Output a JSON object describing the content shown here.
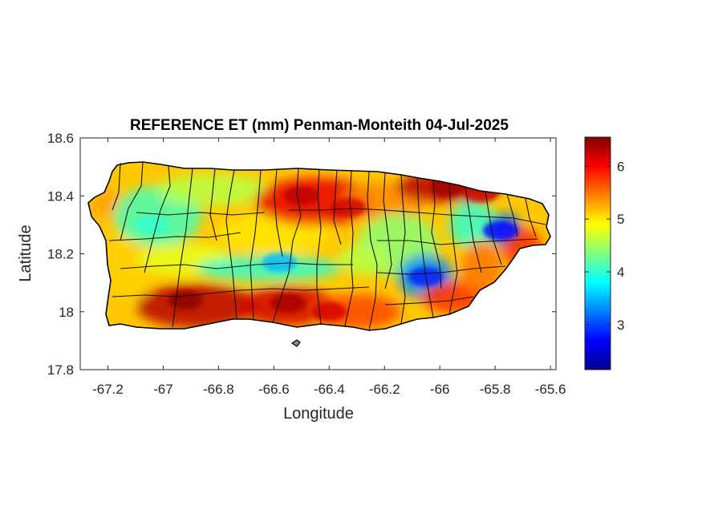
{
  "chart_data": {
    "type": "heatmap",
    "title": "REFERENCE ET (mm) Penman-Monteith 04-Jul-2025",
    "xlabel": "Longitude",
    "ylabel": "Latitude",
    "xlim": [
      -67.3,
      -65.58
    ],
    "ylim": [
      17.8,
      18.6
    ],
    "xticks": [
      -67.2,
      -67,
      -66.8,
      -66.6,
      -66.4,
      -66.2,
      -66,
      -65.8,
      -65.6
    ],
    "xtick_labels": [
      "-67.2",
      "-67",
      "-66.8",
      "-66.6",
      "-66.4",
      "-66.2",
      "-66",
      "-65.8",
      "-65.6"
    ],
    "yticks": [
      17.8,
      18,
      18.2,
      18.4,
      18.6
    ],
    "ytick_labels": [
      "17.8",
      "18",
      "18.2",
      "18.4",
      "18.6"
    ],
    "colormap": "jet",
    "clim": [
      2.15,
      6.55
    ],
    "colorbar_ticks": [
      3,
      4,
      5,
      6
    ],
    "colorbar_tick_labels": [
      "3",
      "4",
      "5",
      "6"
    ],
    "grid": false,
    "region": "Puerto Rico",
    "pattern_description": "highest ET (>6 mm) along the southern coast and the northeast coast; lowest ET (<3.5 mm) in the central mountains and the El Yunque area",
    "hotspots": [
      {
        "lon": -66.92,
        "lat": 18.04,
        "value": 6.5
      },
      {
        "lon": -66.55,
        "lat": 18.03,
        "value": 6.4
      },
      {
        "lon": -66.4,
        "lat": 18.0,
        "value": 6.2
      },
      {
        "lon": -66.5,
        "lat": 18.4,
        "value": 6.3
      },
      {
        "lon": -66.33,
        "lat": 18.36,
        "value": 6.2
      },
      {
        "lon": -65.97,
        "lat": 18.43,
        "value": 6.4
      },
      {
        "lon": -65.85,
        "lat": 18.41,
        "value": 6.2
      },
      {
        "lon": -67.04,
        "lat": 18.3,
        "value": 4.0
      },
      {
        "lon": -66.58,
        "lat": 18.17,
        "value": 3.5
      },
      {
        "lon": -66.05,
        "lat": 18.12,
        "value": 2.8
      },
      {
        "lon": -65.78,
        "lat": 18.28,
        "value": 2.7
      }
    ]
  }
}
